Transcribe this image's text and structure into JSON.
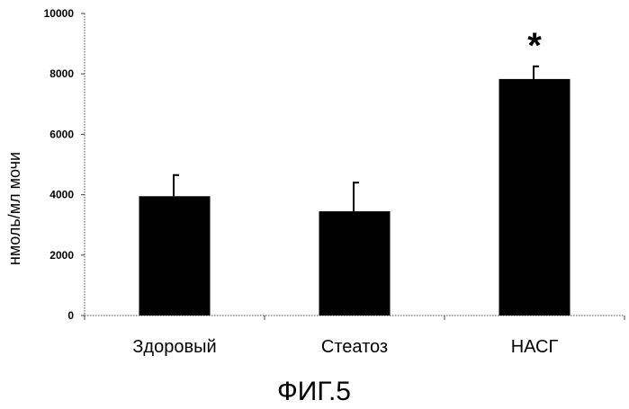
{
  "caption": "ФИГ.5",
  "chart_data": {
    "type": "bar",
    "categories": [
      "Здоровый",
      "Стеатоз",
      "НАСГ"
    ],
    "values": [
      3950,
      3450,
      7830
    ],
    "errors": [
      700,
      950,
      420
    ],
    "annotations": [
      "",
      "",
      "*"
    ],
    "ylabel": "нмоль/мл мочи",
    "xlabel": "",
    "ylim": [
      0,
      10000
    ],
    "yticks": [
      0,
      2000,
      4000,
      6000,
      8000,
      10000
    ],
    "grid": false,
    "bar_color": "#000000"
  }
}
